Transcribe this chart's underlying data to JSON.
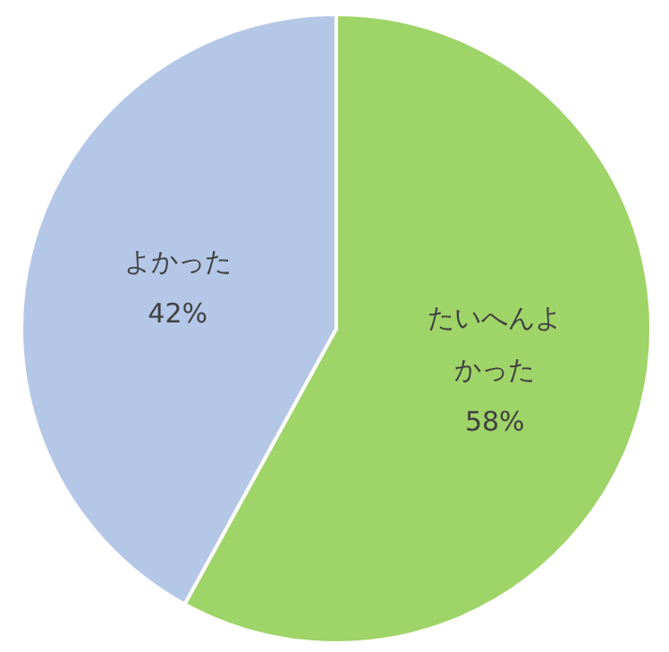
{
  "chart_data": {
    "type": "pie",
    "categories": [
      "たいへんよかった",
      "よかった"
    ],
    "values": [
      58,
      42
    ],
    "colors": [
      "#9fd468",
      "#b4c7e7"
    ],
    "value_labels": [
      "58%",
      "42%"
    ],
    "legend": false
  }
}
